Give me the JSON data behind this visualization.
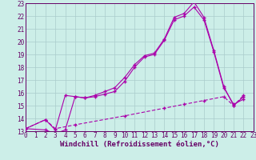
{
  "xlabel": "Windchill (Refroidissement éolien,°C)",
  "bg_color": "#cceee8",
  "grid_color": "#aacccc",
  "line_color": "#aa00aa",
  "xlim": [
    0,
    23
  ],
  "ylim": [
    13,
    23
  ],
  "xticks": [
    0,
    1,
    2,
    3,
    4,
    5,
    6,
    7,
    8,
    9,
    10,
    11,
    12,
    13,
    14,
    15,
    16,
    17,
    18,
    19,
    20,
    21,
    22,
    23
  ],
  "yticks": [
    13,
    14,
    15,
    16,
    17,
    18,
    19,
    20,
    21,
    22,
    23
  ],
  "line1_x": [
    0,
    2,
    3,
    4,
    5,
    6,
    7,
    8,
    9,
    10,
    11,
    12,
    13,
    14,
    15,
    16,
    17,
    18,
    19,
    20,
    21,
    22
  ],
  "line1_y": [
    13.2,
    13.9,
    13.1,
    15.8,
    15.7,
    15.6,
    15.8,
    16.1,
    16.4,
    17.2,
    18.2,
    18.9,
    19.1,
    20.2,
    21.9,
    22.2,
    23.1,
    21.9,
    19.3,
    16.5,
    15.0,
    15.7
  ],
  "line2_x": [
    0,
    2,
    3,
    4,
    5,
    6,
    7,
    8,
    9,
    10,
    11,
    12,
    13,
    14,
    15,
    16,
    17,
    18,
    19,
    20,
    21,
    22
  ],
  "line2_y": [
    13.2,
    13.1,
    12.8,
    13.1,
    15.7,
    15.6,
    15.7,
    15.9,
    16.1,
    16.9,
    18.0,
    18.8,
    19.0,
    20.1,
    21.7,
    22.0,
    22.7,
    21.7,
    19.2,
    16.4,
    15.1,
    15.5
  ],
  "line3_x": [
    0,
    2,
    3,
    5,
    10,
    14,
    16,
    18,
    20,
    21,
    22
  ],
  "line3_y": [
    13.2,
    13.9,
    13.2,
    13.5,
    14.2,
    14.8,
    15.1,
    15.4,
    15.7,
    15.0,
    15.8
  ],
  "tick_fontsize": 5.5,
  "label_fontsize": 6.5
}
